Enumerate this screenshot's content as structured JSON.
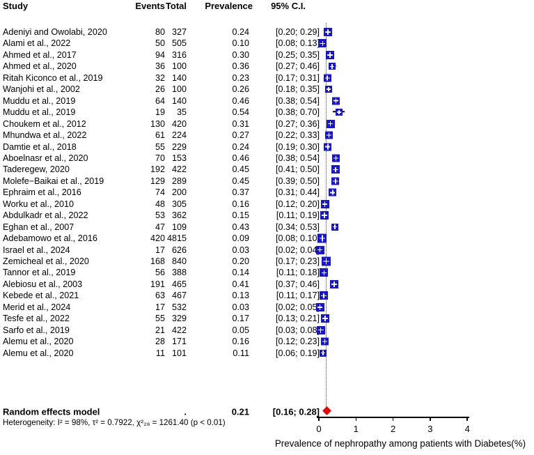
{
  "header": {
    "study": "Study",
    "events": "Events",
    "total": "Total",
    "prevalence": "Prevalence",
    "ci": "95% C.I."
  },
  "chart_data": {
    "type": "forest",
    "title": "",
    "xlabel": "Prevalence of nephropathy among patients with Diabetes(%)",
    "xlim": [
      0,
      4
    ],
    "x_ticks": [
      0,
      1,
      2,
      3,
      4
    ],
    "ref_line": 0.21,
    "grid": false,
    "colors": {
      "marker": "#1414dd",
      "diamond": "#ee0000"
    },
    "studies": [
      {
        "label": "Adeniyi and Owolabi, 2020",
        "events": 80,
        "total": 327,
        "prevalence": 0.24,
        "ci_lower": 0.2,
        "ci_upper": 0.29
      },
      {
        "label": "Alami et al., 2022",
        "events": 50,
        "total": 505,
        "prevalence": 0.1,
        "ci_lower": 0.08,
        "ci_upper": 0.13
      },
      {
        "label": "Ahmed et al., 2017",
        "events": 94,
        "total": 316,
        "prevalence": 0.3,
        "ci_lower": 0.25,
        "ci_upper": 0.35
      },
      {
        "label": "Ahmed et al., 2020",
        "events": 36,
        "total": 100,
        "prevalence": 0.36,
        "ci_lower": 0.27,
        "ci_upper": 0.46
      },
      {
        "label": "Ritah Kiconco et al., 2019",
        "events": 32,
        "total": 140,
        "prevalence": 0.23,
        "ci_lower": 0.17,
        "ci_upper": 0.31
      },
      {
        "label": "Wanjohi et al., 2002",
        "events": 26,
        "total": 100,
        "prevalence": 0.26,
        "ci_lower": 0.18,
        "ci_upper": 0.35
      },
      {
        "label": "Muddu et al., 2019",
        "events": 64,
        "total": 140,
        "prevalence": 0.46,
        "ci_lower": 0.38,
        "ci_upper": 0.54
      },
      {
        "label": "Muddu et al., 2019",
        "events": 19,
        "total": 35,
        "prevalence": 0.54,
        "ci_lower": 0.38,
        "ci_upper": 0.7
      },
      {
        "label": "Choukem et al., 2012",
        "events": 130,
        "total": 420,
        "prevalence": 0.31,
        "ci_lower": 0.27,
        "ci_upper": 0.36
      },
      {
        "label": "Mhundwa et al., 2022",
        "events": 61,
        "total": 224,
        "prevalence": 0.27,
        "ci_lower": 0.22,
        "ci_upper": 0.33
      },
      {
        "label": "Damtie et al., 2018",
        "events": 55,
        "total": 229,
        "prevalence": 0.24,
        "ci_lower": 0.19,
        "ci_upper": 0.3
      },
      {
        "label": "Aboelnasr et al., 2020",
        "events": 70,
        "total": 153,
        "prevalence": 0.46,
        "ci_lower": 0.38,
        "ci_upper": 0.54
      },
      {
        "label": "Taderegew, 2020",
        "events": 192,
        "total": 422,
        "prevalence": 0.45,
        "ci_lower": 0.41,
        "ci_upper": 0.5
      },
      {
        "label": "Molefe−Baikai et al., 2019",
        "events": 129,
        "total": 289,
        "prevalence": 0.45,
        "ci_lower": 0.39,
        "ci_upper": 0.5
      },
      {
        "label": "Ephraim et al., 2016",
        "events": 74,
        "total": 200,
        "prevalence": 0.37,
        "ci_lower": 0.31,
        "ci_upper": 0.44
      },
      {
        "label": "Worku et al., 2010",
        "events": 48,
        "total": 305,
        "prevalence": 0.16,
        "ci_lower": 0.12,
        "ci_upper": 0.2
      },
      {
        "label": "Abdulkadr et al., 2022",
        "events": 53,
        "total": 362,
        "prevalence": 0.15,
        "ci_lower": 0.11,
        "ci_upper": 0.19
      },
      {
        "label": "Eghan et al., 2007",
        "events": 47,
        "total": 109,
        "prevalence": 0.43,
        "ci_lower": 0.34,
        "ci_upper": 0.53
      },
      {
        "label": "Adebamowo et al., 2016",
        "events": 420,
        "total": 4815,
        "prevalence": 0.09,
        "ci_lower": 0.08,
        "ci_upper": 0.1
      },
      {
        "label": "Israel et al., 2024",
        "events": 17,
        "total": 626,
        "prevalence": 0.03,
        "ci_lower": 0.02,
        "ci_upper": 0.04
      },
      {
        "label": "Zemicheal et al., 2020",
        "events": 168,
        "total": 840,
        "prevalence": 0.2,
        "ci_lower": 0.17,
        "ci_upper": 0.23
      },
      {
        "label": "Tannor et al., 2019",
        "events": 56,
        "total": 388,
        "prevalence": 0.14,
        "ci_lower": 0.11,
        "ci_upper": 0.18
      },
      {
        "label": "Alebiosu et al., 2003",
        "events": 191,
        "total": 465,
        "prevalence": 0.41,
        "ci_lower": 0.37,
        "ci_upper": 0.46
      },
      {
        "label": "Kebede et al., 2021",
        "events": 63,
        "total": 467,
        "prevalence": 0.13,
        "ci_lower": 0.11,
        "ci_upper": 0.17
      },
      {
        "label": "Merid et al., 2024",
        "events": 17,
        "total": 532,
        "prevalence": 0.03,
        "ci_lower": 0.02,
        "ci_upper": 0.05
      },
      {
        "label": "Tesfe et al., 2022",
        "events": 55,
        "total": 329,
        "prevalence": 0.17,
        "ci_lower": 0.13,
        "ci_upper": 0.21
      },
      {
        "label": "Sarfo et al., 2019",
        "events": 21,
        "total": 422,
        "prevalence": 0.05,
        "ci_lower": 0.03,
        "ci_upper": 0.08
      },
      {
        "label": "Alemu et al., 2020",
        "events": 28,
        "total": 171,
        "prevalence": 0.16,
        "ci_lower": 0.12,
        "ci_upper": 0.23
      },
      {
        "label": "Alemu et al., 2020",
        "events": 11,
        "total": 101,
        "prevalence": 0.11,
        "ci_lower": 0.06,
        "ci_upper": 0.19
      }
    ],
    "pooled": {
      "label": "Random effects model",
      "total_placeholder": ".",
      "prevalence": 0.21,
      "ci_lower": 0.16,
      "ci_upper": 0.28
    },
    "heterogeneity": "Heterogeneity: I² = 98%, τ² = 0.7922, χ²₂₈ = 1261.40 (p < 0.01)"
  }
}
